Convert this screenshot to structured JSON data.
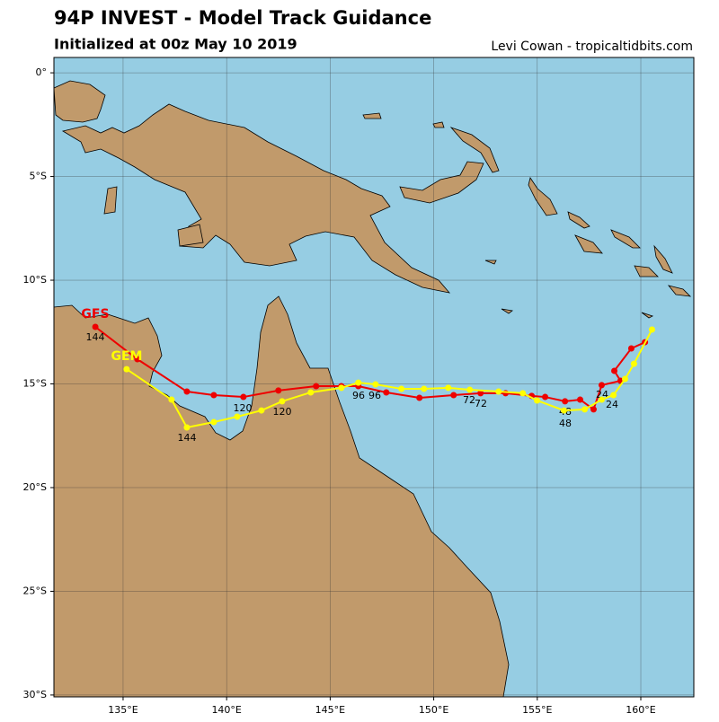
{
  "chart_data": {
    "type": "track",
    "title": "94P INVEST - Model Track Guidance",
    "subtitle": "Initialized at 00z May 10 2019",
    "credit": "Levi Cowan - tropicaltidbits.com",
    "xlim": [
      131.66,
      162.56
    ],
    "ylim": [
      -30.09,
      0.74
    ],
    "xticks": [
      {
        "value": 135,
        "label": "135°E"
      },
      {
        "value": 140,
        "label": "140°E"
      },
      {
        "value": 145,
        "label": "145°E"
      },
      {
        "value": 150,
        "label": "150°E"
      },
      {
        "value": 155,
        "label": "155°E"
      },
      {
        "value": 160,
        "label": "160°E"
      }
    ],
    "yticks": [
      {
        "value": 0,
        "label": "0°"
      },
      {
        "value": -5,
        "label": "5°S"
      },
      {
        "value": -10,
        "label": "10°S"
      },
      {
        "value": -15,
        "label": "15°S"
      },
      {
        "value": -20,
        "label": "20°S"
      },
      {
        "value": -25,
        "label": "25°S"
      },
      {
        "value": -30,
        "label": "30°S"
      }
    ],
    "grid": true,
    "series": [
      {
        "name": "GFS",
        "color": "#ee0000",
        "lon": [
          160.2,
          159.54,
          158.72,
          159.02,
          158.11,
          157.72,
          157.07,
          156.34,
          155.38,
          154.73,
          153.47,
          152.26,
          150.96,
          149.31,
          147.71,
          146.36,
          145.54,
          144.32,
          142.5,
          140.81,
          139.38,
          138.08,
          135.69,
          133.66
        ],
        "lat": [
          -12.99,
          -13.29,
          -14.37,
          -14.85,
          -15.06,
          -16.23,
          -15.76,
          -15.84,
          -15.63,
          -15.58,
          -15.45,
          -15.45,
          -15.54,
          -15.67,
          -15.41,
          -15.11,
          -15.11,
          -15.11,
          -15.32,
          -15.63,
          -15.54,
          -15.37,
          -13.81,
          -12.25
        ],
        "hour_labels": [
          24,
          48,
          72,
          96,
          120,
          144
        ]
      },
      {
        "name": "GEM",
        "color": "#ffff00",
        "lon": [
          160.54,
          159.67,
          159.24,
          158.68,
          158.11,
          157.29,
          156.29,
          154.99,
          154.3,
          153.13,
          151.74,
          150.7,
          149.53,
          148.44,
          147.19,
          146.36,
          145.54,
          144.06,
          142.68,
          141.68,
          140.51,
          139.38,
          138.08,
          137.34,
          135.17
        ],
        "lat": [
          -12.38,
          -14.03,
          -14.76,
          -15.54,
          -15.76,
          -16.23,
          -16.28,
          -15.8,
          -15.45,
          -15.37,
          -15.28,
          -15.19,
          -15.24,
          -15.24,
          -15.02,
          -14.94,
          -15.19,
          -15.41,
          -15.84,
          -16.28,
          -16.58,
          -16.84,
          -17.1,
          -15.76,
          -14.29
        ],
        "hour_labels": [
          24,
          48,
          72,
          96,
          120,
          144
        ]
      }
    ]
  }
}
